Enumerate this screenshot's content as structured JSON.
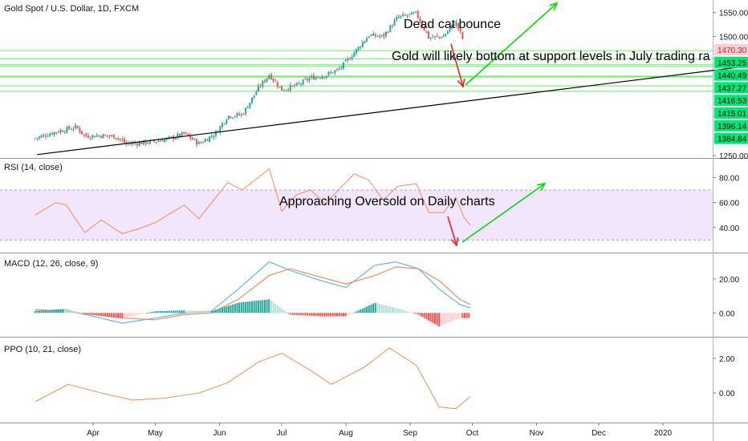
{
  "header": {
    "title": "Gold Spot / U.S. Dollar, 1D, FXCM"
  },
  "colors": {
    "up": "#26a69a",
    "down": "#ef5350",
    "support": "#66ee66",
    "trendline": "#000000",
    "arrow_up": "#00dd00",
    "arrow_down": "#ee2222",
    "rsi": "#f48b58",
    "rsi_band": "#f1e6fc",
    "macd": "#5eb5f0",
    "signal": "#f48b58",
    "ppo": "#f48b58",
    "hist_pos": "#26a69a",
    "hist_pos_light": "#b2dfdb",
    "hist_neg": "#ef5350",
    "hist_neg_light": "#ffcdd2"
  },
  "annotations": {
    "dead_cat": "Dead cat bounce",
    "gold_bottom": "Gold will likely bottom at support levels in July trading ra",
    "oversold": "Approaching Oversold on Daily charts"
  },
  "chart_data": [
    {
      "type": "candlestick",
      "name": "price",
      "title": "Gold Spot / U.S. Dollar, 1D, FXCM",
      "x_labels": [
        "Apr",
        "May",
        "Jun",
        "Jul",
        "Aug",
        "Sep",
        "Oct",
        "Nov",
        "Dec",
        "2020",
        "Feb"
      ],
      "y_ticks": [
        1250,
        1500,
        1550
      ],
      "ylim": [
        1245,
        1568
      ],
      "support_levels": [
        1470.3,
        1453.25,
        1440.49,
        1437.27,
        1416.53,
        1415.01,
        1396.14,
        1384.84
      ],
      "price_labels": [
        "1470.30",
        "1453.25",
        "1440.49",
        "1437.27",
        "1416.53",
        "1415.01",
        "1396.14",
        "1384.84"
      ],
      "trendline": [
        [
          "2019-03-05",
          1252
        ],
        [
          "2020-02-15",
          1440
        ]
      ],
      "closes": [
        [
          "2019-03-04",
          1286
        ],
        [
          "2019-03-14",
          1300
        ],
        [
          "2019-03-24",
          1310
        ],
        [
          "2019-03-28",
          1291
        ],
        [
          "2019-04-05",
          1292
        ],
        [
          "2019-04-12",
          1290
        ],
        [
          "2019-04-17",
          1275
        ],
        [
          "2019-04-23",
          1276
        ],
        [
          "2019-05-01",
          1280
        ],
        [
          "2019-05-09",
          1287
        ],
        [
          "2019-05-15",
          1296
        ],
        [
          "2019-05-22",
          1275
        ],
        [
          "2019-05-30",
          1296
        ],
        [
          "2019-06-05",
          1333
        ],
        [
          "2019-06-12",
          1336
        ],
        [
          "2019-06-20",
          1393
        ],
        [
          "2019-06-25",
          1420
        ],
        [
          "2019-07-01",
          1388
        ],
        [
          "2019-07-08",
          1397
        ],
        [
          "2019-07-15",
          1413
        ],
        [
          "2019-07-22",
          1418
        ],
        [
          "2019-07-29",
          1432
        ],
        [
          "2019-08-05",
          1466
        ],
        [
          "2019-08-12",
          1502
        ],
        [
          "2019-08-19",
          1500
        ],
        [
          "2019-08-26",
          1540
        ],
        [
          "2019-09-04",
          1548
        ],
        [
          "2019-09-10",
          1497
        ],
        [
          "2019-09-17",
          1500
        ],
        [
          "2019-09-23",
          1530
        ],
        [
          "2019-09-27",
          1489
        ]
      ]
    },
    {
      "type": "line",
      "name": "rsi",
      "title": "RSI (14, close)",
      "y_ticks": [
        40,
        60,
        80
      ],
      "band": [
        30,
        70
      ],
      "points": [
        [
          "2019-03-04",
          50
        ],
        [
          "2019-03-14",
          60
        ],
        [
          "2019-03-19",
          58
        ],
        [
          "2019-03-28",
          36
        ],
        [
          "2019-04-05",
          46
        ],
        [
          "2019-04-15",
          35
        ],
        [
          "2019-04-23",
          39
        ],
        [
          "2019-05-01",
          44
        ],
        [
          "2019-05-15",
          58
        ],
        [
          "2019-05-22",
          47
        ],
        [
          "2019-06-05",
          76
        ],
        [
          "2019-06-12",
          70
        ],
        [
          "2019-06-25",
          87
        ],
        [
          "2019-07-01",
          53
        ],
        [
          "2019-07-08",
          66
        ],
        [
          "2019-07-15",
          70
        ],
        [
          "2019-07-22",
          59
        ],
        [
          "2019-08-05",
          83
        ],
        [
          "2019-08-12",
          78
        ],
        [
          "2019-08-19",
          62
        ],
        [
          "2019-08-26",
          73
        ],
        [
          "2019-09-04",
          75
        ],
        [
          "2019-09-10",
          52
        ],
        [
          "2019-09-17",
          52
        ],
        [
          "2019-09-23",
          64
        ],
        [
          "2019-09-27",
          48
        ],
        [
          "2019-09-30",
          42
        ]
      ]
    },
    {
      "type": "line",
      "name": "macd",
      "title": "MACD (12, 26, close, 9)",
      "y_ticks": [
        0,
        20
      ],
      "macd": [
        [
          "2019-03-04",
          1
        ],
        [
          "2019-03-18",
          2
        ],
        [
          "2019-04-01",
          -2
        ],
        [
          "2019-04-15",
          -6
        ],
        [
          "2019-05-01",
          -3
        ],
        [
          "2019-05-15",
          0
        ],
        [
          "2019-05-28",
          1
        ],
        [
          "2019-06-10",
          14
        ],
        [
          "2019-06-25",
          30
        ],
        [
          "2019-07-05",
          25
        ],
        [
          "2019-07-20",
          19
        ],
        [
          "2019-08-01",
          15
        ],
        [
          "2019-08-15",
          28
        ],
        [
          "2019-08-25",
          30
        ],
        [
          "2019-09-05",
          26
        ],
        [
          "2019-09-15",
          14
        ],
        [
          "2019-09-25",
          5
        ],
        [
          "2019-09-30",
          3
        ]
      ],
      "signal": [
        [
          "2019-03-04",
          2
        ],
        [
          "2019-03-18",
          1
        ],
        [
          "2019-04-01",
          -1
        ],
        [
          "2019-04-15",
          -3
        ],
        [
          "2019-05-01",
          -4
        ],
        [
          "2019-05-15",
          -1
        ],
        [
          "2019-05-28",
          0
        ],
        [
          "2019-06-10",
          8
        ],
        [
          "2019-06-25",
          22
        ],
        [
          "2019-07-05",
          26
        ],
        [
          "2019-07-20",
          21
        ],
        [
          "2019-08-01",
          17
        ],
        [
          "2019-08-15",
          22
        ],
        [
          "2019-08-25",
          27
        ],
        [
          "2019-09-05",
          26
        ],
        [
          "2019-09-15",
          19
        ],
        [
          "2019-09-25",
          8
        ],
        [
          "2019-09-30",
          5
        ]
      ],
      "histogram": [
        [
          "2019-03-04",
          1
        ],
        [
          "2019-03-18",
          2
        ],
        [
          "2019-04-01",
          -1
        ],
        [
          "2019-04-15",
          -3
        ],
        [
          "2019-05-01",
          1
        ],
        [
          "2019-05-15",
          1.5
        ],
        [
          "2019-05-28",
          1
        ],
        [
          "2019-06-10",
          6
        ],
        [
          "2019-06-25",
          8
        ],
        [
          "2019-07-05",
          -1
        ],
        [
          "2019-07-20",
          -2
        ],
        [
          "2019-08-01",
          -2
        ],
        [
          "2019-08-15",
          6
        ],
        [
          "2019-08-25",
          3
        ],
        [
          "2019-09-05",
          -1
        ],
        [
          "2019-09-15",
          -8
        ],
        [
          "2019-09-25",
          -3
        ],
        [
          "2019-09-30",
          -3
        ]
      ]
    },
    {
      "type": "line",
      "name": "ppo",
      "title": "PPO (10, 21, close)",
      "y_ticks": [
        0,
        2
      ],
      "points": [
        [
          "2019-03-04",
          -0.5
        ],
        [
          "2019-03-20",
          0.5
        ],
        [
          "2019-04-05",
          0.0
        ],
        [
          "2019-04-20",
          -0.4
        ],
        [
          "2019-05-05",
          -0.3
        ],
        [
          "2019-05-22",
          0.0
        ],
        [
          "2019-06-05",
          0.6
        ],
        [
          "2019-06-20",
          1.8
        ],
        [
          "2019-07-01",
          2.3
        ],
        [
          "2019-07-15",
          1.3
        ],
        [
          "2019-07-25",
          0.5
        ],
        [
          "2019-08-10",
          1.5
        ],
        [
          "2019-08-22",
          2.6
        ],
        [
          "2019-09-04",
          1.6
        ],
        [
          "2019-09-15",
          -0.8
        ],
        [
          "2019-09-23",
          -0.9
        ],
        [
          "2019-09-30",
          -0.2
        ]
      ]
    }
  ]
}
